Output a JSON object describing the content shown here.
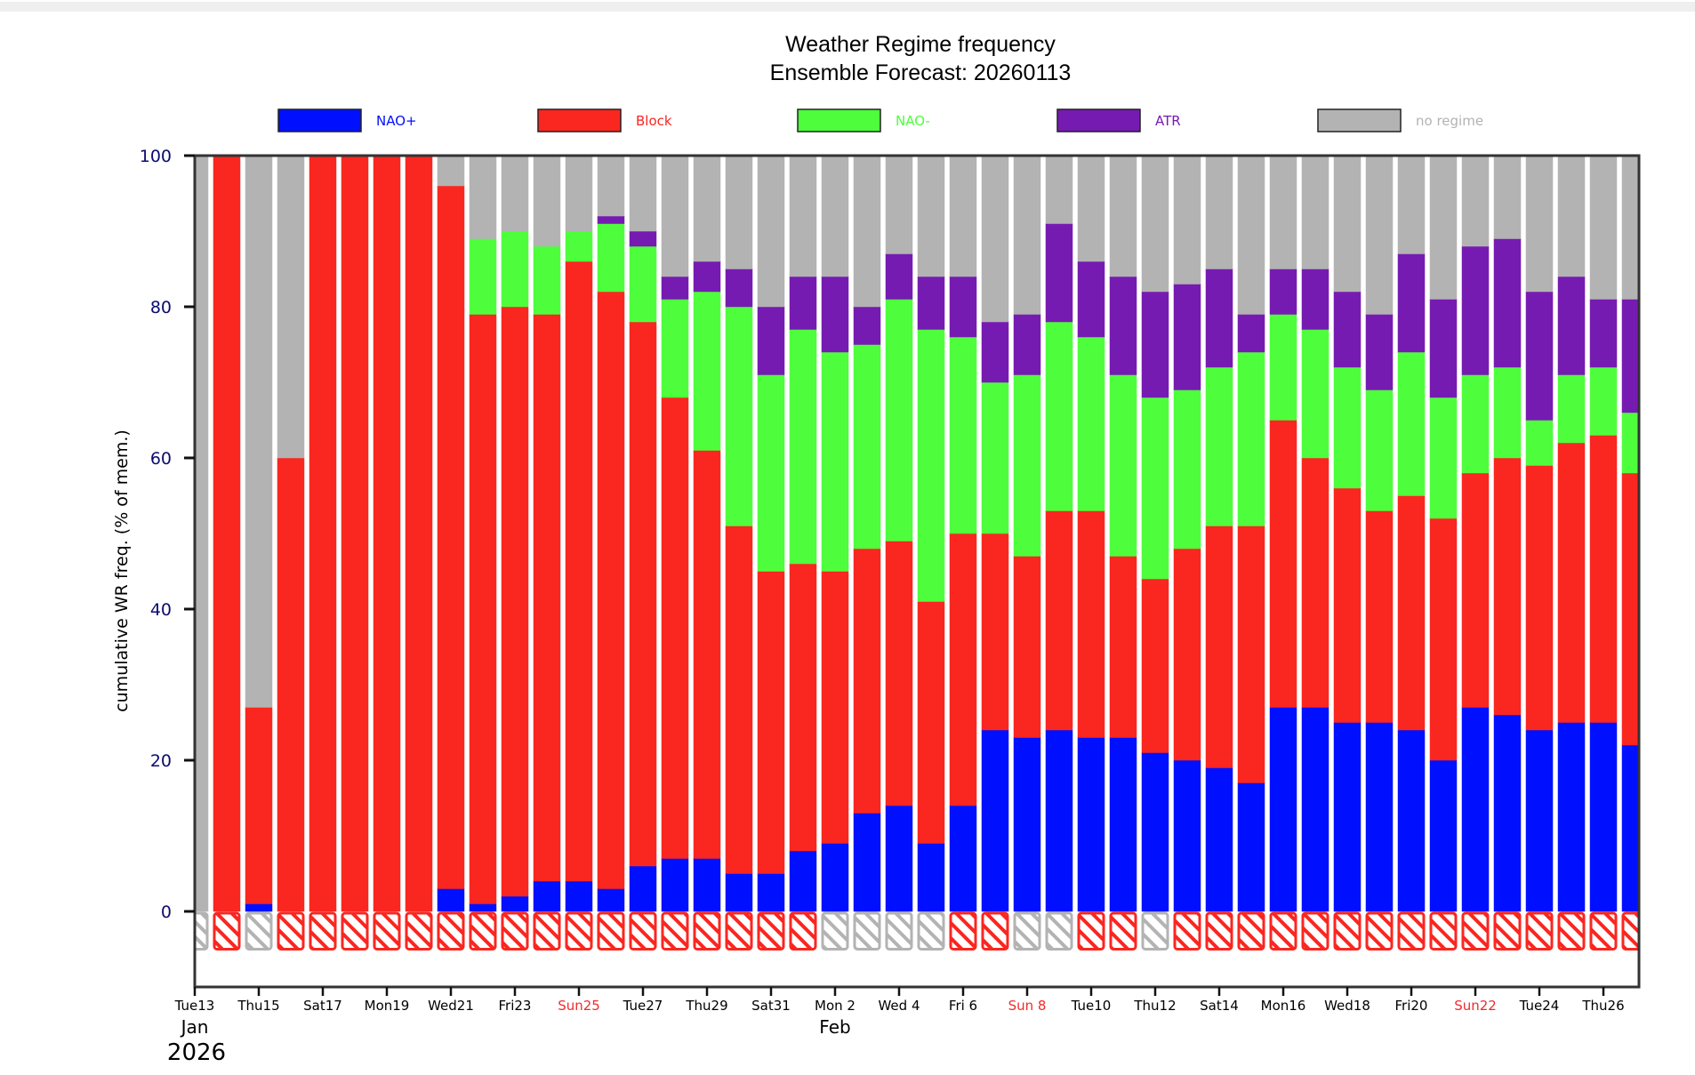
{
  "chart_data": {
    "type": "bar",
    "stacked": true,
    "title": "Weather Regime frequency",
    "subtitle": "Ensemble Forecast: 20260113",
    "xlabel": "",
    "ylabel": "cumulative WR freq. (% of mem.)",
    "ylim": [
      -10,
      100
    ],
    "yticks": [
      0,
      20,
      40,
      60,
      80,
      100
    ],
    "grid": false,
    "legend_position": "top",
    "legend": [
      {
        "name": "NAO+",
        "color": "#0010ff"
      },
      {
        "name": "Block",
        "color": "#fa2620"
      },
      {
        "name": "NAO-",
        "color": "#4efe3c"
      },
      {
        "name": "ATR",
        "color": "#761bb1"
      },
      {
        "name": "no regime",
        "color": "#b3b3b3"
      }
    ],
    "colors": {
      "NAO+": "#0010ff",
      "Block": "#fa2620",
      "NAO-": "#4efe3c",
      "ATR": "#761bb1",
      "no regime": "#b3b3b3",
      "weekend_label": "#f22a2a",
      "ytick_label": "#0c0c6e"
    },
    "dates": [
      "Jan 13",
      "Jan 14",
      "Jan 15",
      "Jan 16",
      "Jan 17",
      "Jan 18",
      "Jan 19",
      "Jan 20",
      "Jan 21",
      "Jan 22",
      "Jan 23",
      "Jan 24",
      "Jan 25",
      "Jan 26",
      "Jan 27",
      "Jan 28",
      "Jan 29",
      "Jan 30",
      "Jan 31",
      "Feb 1",
      "Feb 2",
      "Feb 3",
      "Feb 4",
      "Feb 5",
      "Feb 6",
      "Feb 7",
      "Feb 8",
      "Feb 9",
      "Feb 10",
      "Feb 11",
      "Feb 12",
      "Feb 13",
      "Feb 14",
      "Feb 15",
      "Feb 16",
      "Feb 17",
      "Feb 18",
      "Feb 19",
      "Feb 20",
      "Feb 21",
      "Feb 22",
      "Feb 23",
      "Feb 24",
      "Feb 25",
      "Feb 26",
      "Feb 27"
    ],
    "series": [
      {
        "name": "NAO+",
        "values": [
          0,
          0,
          1,
          0,
          0,
          0,
          0,
          0,
          3,
          1,
          2,
          4,
          4,
          3,
          6,
          7,
          7,
          5,
          5,
          8,
          9,
          13,
          14,
          9,
          14,
          24,
          23,
          24,
          23,
          23,
          21,
          20,
          19,
          17,
          27,
          27,
          25,
          25,
          24,
          20,
          27,
          26,
          24,
          25,
          25,
          22
        ]
      },
      {
        "name": "Block",
        "values": [
          0,
          100,
          26,
          60,
          100,
          100,
          100,
          100,
          93,
          78,
          78,
          75,
          82,
          79,
          72,
          61,
          54,
          46,
          40,
          38,
          36,
          35,
          35,
          32,
          36,
          26,
          24,
          29,
          30,
          24,
          23,
          28,
          32,
          34,
          38,
          33,
          31,
          28,
          31,
          32,
          31,
          34,
          35,
          37,
          38,
          36
        ]
      },
      {
        "name": "NAO-",
        "values": [
          0,
          0,
          0,
          0,
          0,
          0,
          0,
          0,
          0,
          10,
          10,
          9,
          4,
          9,
          10,
          13,
          21,
          29,
          26,
          31,
          29,
          27,
          32,
          36,
          26,
          20,
          24,
          25,
          23,
          24,
          24,
          21,
          21,
          23,
          14,
          17,
          16,
          16,
          19,
          16,
          13,
          12,
          6,
          9,
          9,
          8
        ]
      },
      {
        "name": "ATR",
        "values": [
          0,
          0,
          0,
          0,
          0,
          0,
          0,
          0,
          0,
          0,
          0,
          0,
          0,
          1,
          2,
          3,
          4,
          5,
          9,
          7,
          10,
          5,
          6,
          7,
          8,
          8,
          8,
          13,
          10,
          13,
          14,
          14,
          13,
          5,
          6,
          8,
          10,
          10,
          13,
          13,
          17,
          17,
          17,
          13,
          9,
          15
        ]
      },
      {
        "name": "no regime",
        "values": [
          100,
          0,
          73,
          40,
          0,
          0,
          0,
          0,
          4,
          11,
          10,
          12,
          10,
          8,
          10,
          16,
          14,
          15,
          20,
          16,
          16,
          20,
          13,
          16,
          16,
          22,
          21,
          9,
          14,
          16,
          18,
          17,
          15,
          21,
          15,
          15,
          18,
          21,
          13,
          19,
          12,
          11,
          18,
          16,
          19,
          19
        ]
      }
    ],
    "dominant_regime": [
      "no regime",
      "Block",
      "no regime",
      "Block",
      "Block",
      "Block",
      "Block",
      "Block",
      "Block",
      "Block",
      "Block",
      "Block",
      "Block",
      "Block",
      "Block",
      "Block",
      "Block",
      "Block",
      "Block",
      "Block",
      "no regime",
      "no regime",
      "no regime",
      "no regime",
      "Block",
      "Block",
      "no regime",
      "no regime",
      "Block",
      "Block",
      "no regime",
      "Block",
      "Block",
      "Block",
      "Block",
      "Block",
      "Block",
      "Block",
      "Block",
      "Block",
      "Block",
      "Block",
      "Block",
      "Block",
      "Block",
      "Block"
    ],
    "xtick_labels": [
      {
        "label": "Tue13",
        "day_index": 0,
        "weekend": false
      },
      {
        "label": "Thu15",
        "day_index": 2,
        "weekend": false
      },
      {
        "label": "Sat17",
        "day_index": 4,
        "weekend": false
      },
      {
        "label": "Mon19",
        "day_index": 6,
        "weekend": false
      },
      {
        "label": "Wed21",
        "day_index": 8,
        "weekend": false
      },
      {
        "label": "Fri23",
        "day_index": 10,
        "weekend": false
      },
      {
        "label": "Sun25",
        "day_index": 12,
        "weekend": true
      },
      {
        "label": "Tue27",
        "day_index": 14,
        "weekend": false
      },
      {
        "label": "Thu29",
        "day_index": 16,
        "weekend": false
      },
      {
        "label": "Sat31",
        "day_index": 18,
        "weekend": false
      },
      {
        "label": "Mon 2",
        "day_index": 20,
        "weekend": false
      },
      {
        "label": "Wed 4",
        "day_index": 22,
        "weekend": false
      },
      {
        "label": "Fri 6",
        "day_index": 24,
        "weekend": false
      },
      {
        "label": "Sun 8",
        "day_index": 26,
        "weekend": true
      },
      {
        "label": "Tue10",
        "day_index": 28,
        "weekend": false
      },
      {
        "label": "Thu12",
        "day_index": 30,
        "weekend": false
      },
      {
        "label": "Sat14",
        "day_index": 32,
        "weekend": false
      },
      {
        "label": "Mon16",
        "day_index": 34,
        "weekend": false
      },
      {
        "label": "Wed18",
        "day_index": 36,
        "weekend": false
      },
      {
        "label": "Fri20",
        "day_index": 38,
        "weekend": false
      },
      {
        "label": "Sun22",
        "day_index": 40,
        "weekend": true
      },
      {
        "label": "Tue24",
        "day_index": 42,
        "weekend": false
      },
      {
        "label": "Thu26",
        "day_index": 44,
        "weekend": false
      }
    ],
    "month_labels": [
      {
        "label": "Jan",
        "day_index": 0
      },
      {
        "label": "Feb",
        "day_index": 20
      }
    ],
    "year_label": "2026"
  }
}
